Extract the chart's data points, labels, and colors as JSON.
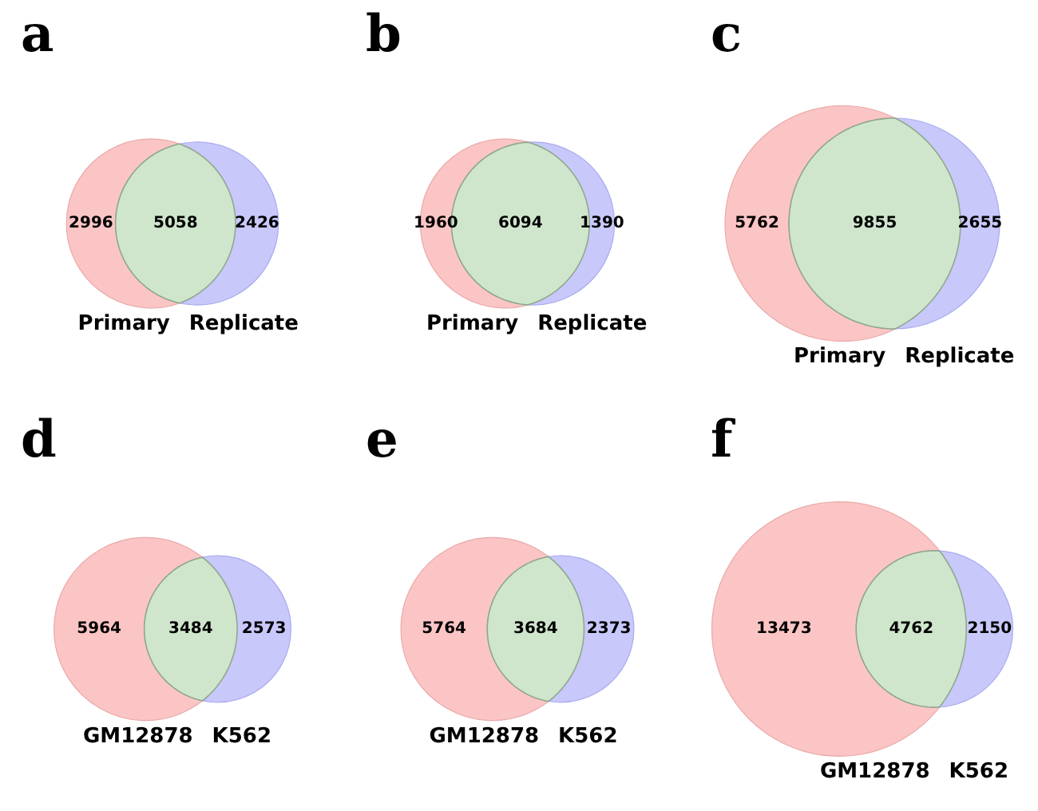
{
  "chart_data": [
    {
      "type": "other",
      "title": "a",
      "categories": [
        "Primary",
        null,
        "Replicate"
      ],
      "values": [
        2996,
        5058,
        2426
      ],
      "colors": [
        "#fcc5c5",
        "#cfe6cc",
        "#c8c8fb"
      ],
      "data_labels": true
    },
    {
      "type": "other",
      "title": "b",
      "categories": [
        "Primary",
        null,
        "Replicate"
      ],
      "values": [
        1960,
        6094,
        1390
      ],
      "colors": [
        "#fcc5c5",
        "#cfe6cc",
        "#c8c8fb"
      ],
      "data_labels": true
    },
    {
      "type": "other",
      "title": "c",
      "categories": [
        "Primary",
        null,
        "Replicate"
      ],
      "values": [
        5762,
        9855,
        2655
      ],
      "colors": [
        "#fcc5c5",
        "#cfe6cc",
        "#c8c8fb"
      ],
      "data_labels": true
    },
    {
      "type": "other",
      "title": "d",
      "categories": [
        "GM12878",
        null,
        "K562"
      ],
      "values": [
        5964,
        3484,
        2573
      ],
      "colors": [
        "#fcc5c5",
        "#cfe6cc",
        "#c8c8fb"
      ],
      "data_labels": true
    },
    {
      "type": "other",
      "title": "e",
      "categories": [
        "GM12878",
        null,
        "K562"
      ],
      "values": [
        5764,
        3684,
        2373
      ],
      "colors": [
        "#fcc5c5",
        "#cfe6cc",
        "#c8c8fb"
      ],
      "data_labels": true
    },
    {
      "type": "other",
      "title": "f",
      "categories": [
        "GM12878",
        null,
        "K562"
      ],
      "values": [
        13473,
        4762,
        2150
      ],
      "colors": [
        "#fcc5c5",
        "#cfe6cc",
        "#c8c8fb"
      ],
      "data_labels": true
    }
  ]
}
